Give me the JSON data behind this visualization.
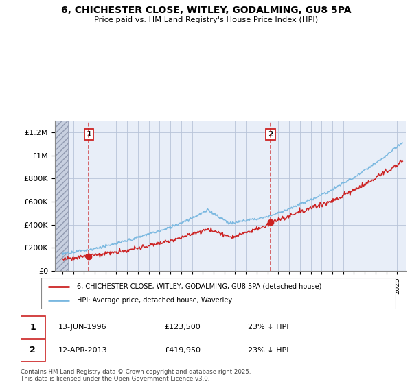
{
  "title": "6, CHICHESTER CLOSE, WITLEY, GODALMING, GU8 5PA",
  "subtitle": "Price paid vs. HM Land Registry's House Price Index (HPI)",
  "ylim": [
    0,
    1300000
  ],
  "yticks": [
    0,
    200000,
    400000,
    600000,
    800000,
    1000000,
    1200000
  ],
  "ytick_labels": [
    "£0",
    "£200K",
    "£400K",
    "£600K",
    "£800K",
    "£1M",
    "£1.2M"
  ],
  "hpi_color": "#7ab8e0",
  "price_color": "#cc2222",
  "purchase1_year": 1996.45,
  "purchase1_price": 123500,
  "purchase2_year": 2013.28,
  "purchase2_price": 419950,
  "legend_line1": "6, CHICHESTER CLOSE, WITLEY, GODALMING, GU8 5PA (detached house)",
  "legend_line2": "HPI: Average price, detached house, Waverley",
  "table_row1": [
    "1",
    "13-JUN-1996",
    "£123,500",
    "23% ↓ HPI"
  ],
  "table_row2": [
    "2",
    "12-APR-2013",
    "£419,950",
    "23% ↓ HPI"
  ],
  "footer": "Contains HM Land Registry data © Crown copyright and database right 2025.\nThis data is licensed under the Open Government Licence v3.0.",
  "bg_color": "#e8eef8",
  "hatch_color": "#c8d0e0",
  "grid_color": "#b8c4d8"
}
